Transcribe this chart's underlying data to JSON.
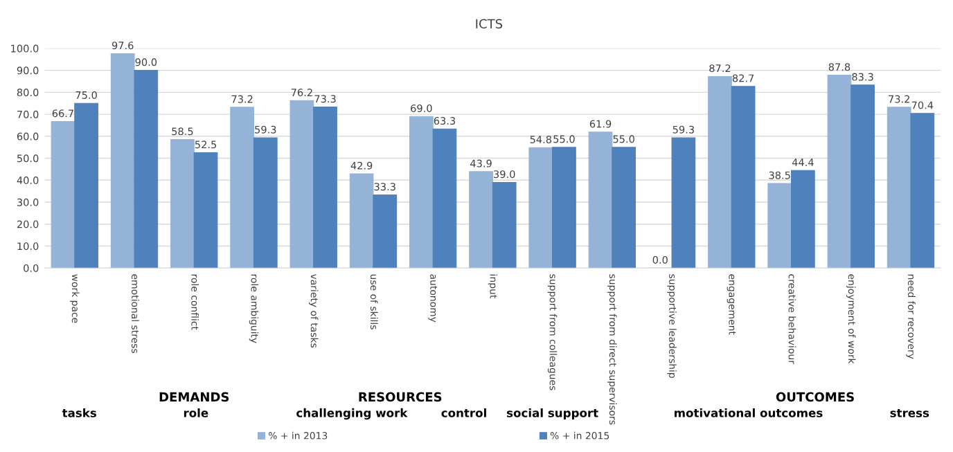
{
  "chart_data": {
    "type": "bar",
    "title": "ICTS",
    "categories": [
      "work pace",
      "emotional stress",
      "role conflict",
      "role ambiguity",
      "variety of tasks",
      "use of skills",
      "autonomy",
      "input",
      "support from colleagues",
      "support from direct supervisors",
      "supportive leadership",
      "engagement",
      "creative behaviour",
      "enjoyment of work",
      "need for recovery"
    ],
    "series": [
      {
        "name": "% + in 2013",
        "color": "#95b3d7",
        "values": [
          66.7,
          97.6,
          58.5,
          73.2,
          76.2,
          42.9,
          69.0,
          43.9,
          54.8,
          61.9,
          0.0,
          87.2,
          38.5,
          87.8,
          73.2
        ],
        "value_labels": [
          "66.7",
          "97.6",
          "58.5",
          "73.2",
          "76.2",
          "42.9",
          "69.0",
          "43.9",
          "54.8",
          "61.9",
          "0.0",
          "87.2",
          "38.5",
          "87.8",
          "73.2"
        ]
      },
      {
        "name": "% + in 2015",
        "color": "#4f81bd",
        "values": [
          75.0,
          90.0,
          52.5,
          59.3,
          73.3,
          33.3,
          63.3,
          39.0,
          55.0,
          55.0,
          59.3,
          82.7,
          44.4,
          83.3,
          70.4
        ],
        "value_labels": [
          "75.0",
          "90.0",
          "52.5",
          "59.3",
          "73.3",
          "33.3",
          "63.3",
          "39.0",
          "55.0",
          "55.0",
          "59.3",
          "82.7",
          "44.4",
          "83.3",
          "70.4"
        ]
      }
    ],
    "ylim": [
      0,
      100
    ],
    "yticks": [
      {
        "value": 0,
        "label": "0.0"
      },
      {
        "value": 10,
        "label": "10.0"
      },
      {
        "value": 20,
        "label": "20.0"
      },
      {
        "value": 30,
        "label": "30.0"
      },
      {
        "value": 40,
        "label": "40.0"
      },
      {
        "value": 50,
        "label": "50.0"
      },
      {
        "value": 60,
        "label": "60.0"
      },
      {
        "value": 70,
        "label": "70.0"
      },
      {
        "value": 80,
        "label": "80.0"
      },
      {
        "value": 90,
        "label": "90.0"
      },
      {
        "value": 100,
        "label": "100.0"
      }
    ],
    "grid": "y",
    "legend": "bottom",
    "annotations": [
      "DEMANDS",
      "RESOURCES",
      "OUTCOMES",
      "tasks",
      "role",
      "challenging work",
      "control",
      "social support",
      "motivational outcomes",
      "stress"
    ]
  }
}
